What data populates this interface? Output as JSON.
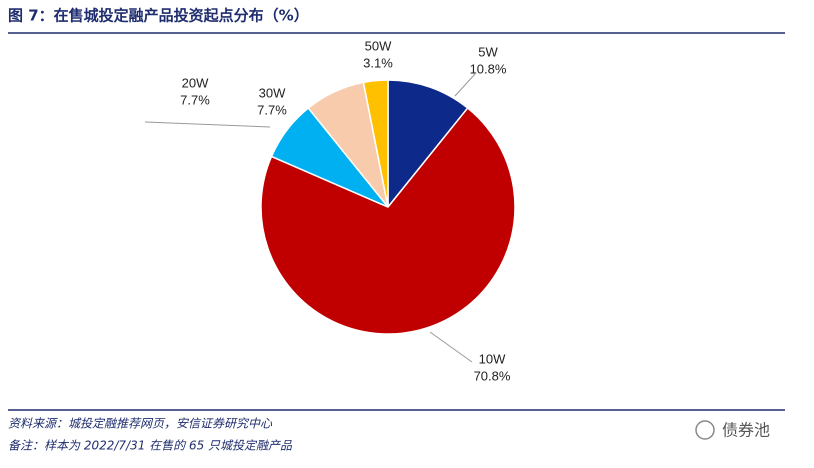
{
  "chart_data": {
    "type": "pie",
    "title": "图 7：在售城投定融产品投资起点分布（%）",
    "categories": [
      "5W",
      "10W",
      "20W",
      "30W",
      "50W"
    ],
    "values": [
      10.8,
      70.8,
      7.7,
      7.7,
      3.1
    ],
    "value_labels": [
      "10.8%",
      "70.8%",
      "7.7%",
      "7.7%",
      "3.1%"
    ],
    "colors": [
      "#0d2a8a",
      "#c00000",
      "#00b0f0",
      "#f8cbad",
      "#ffc000"
    ]
  },
  "footer": {
    "source": "资料来源：城投定融推荐网页，安信证券研究中心",
    "note": "备注：样本为 2022/7/31 在售的 65 只城投定融产品",
    "watermark": "债券池"
  }
}
